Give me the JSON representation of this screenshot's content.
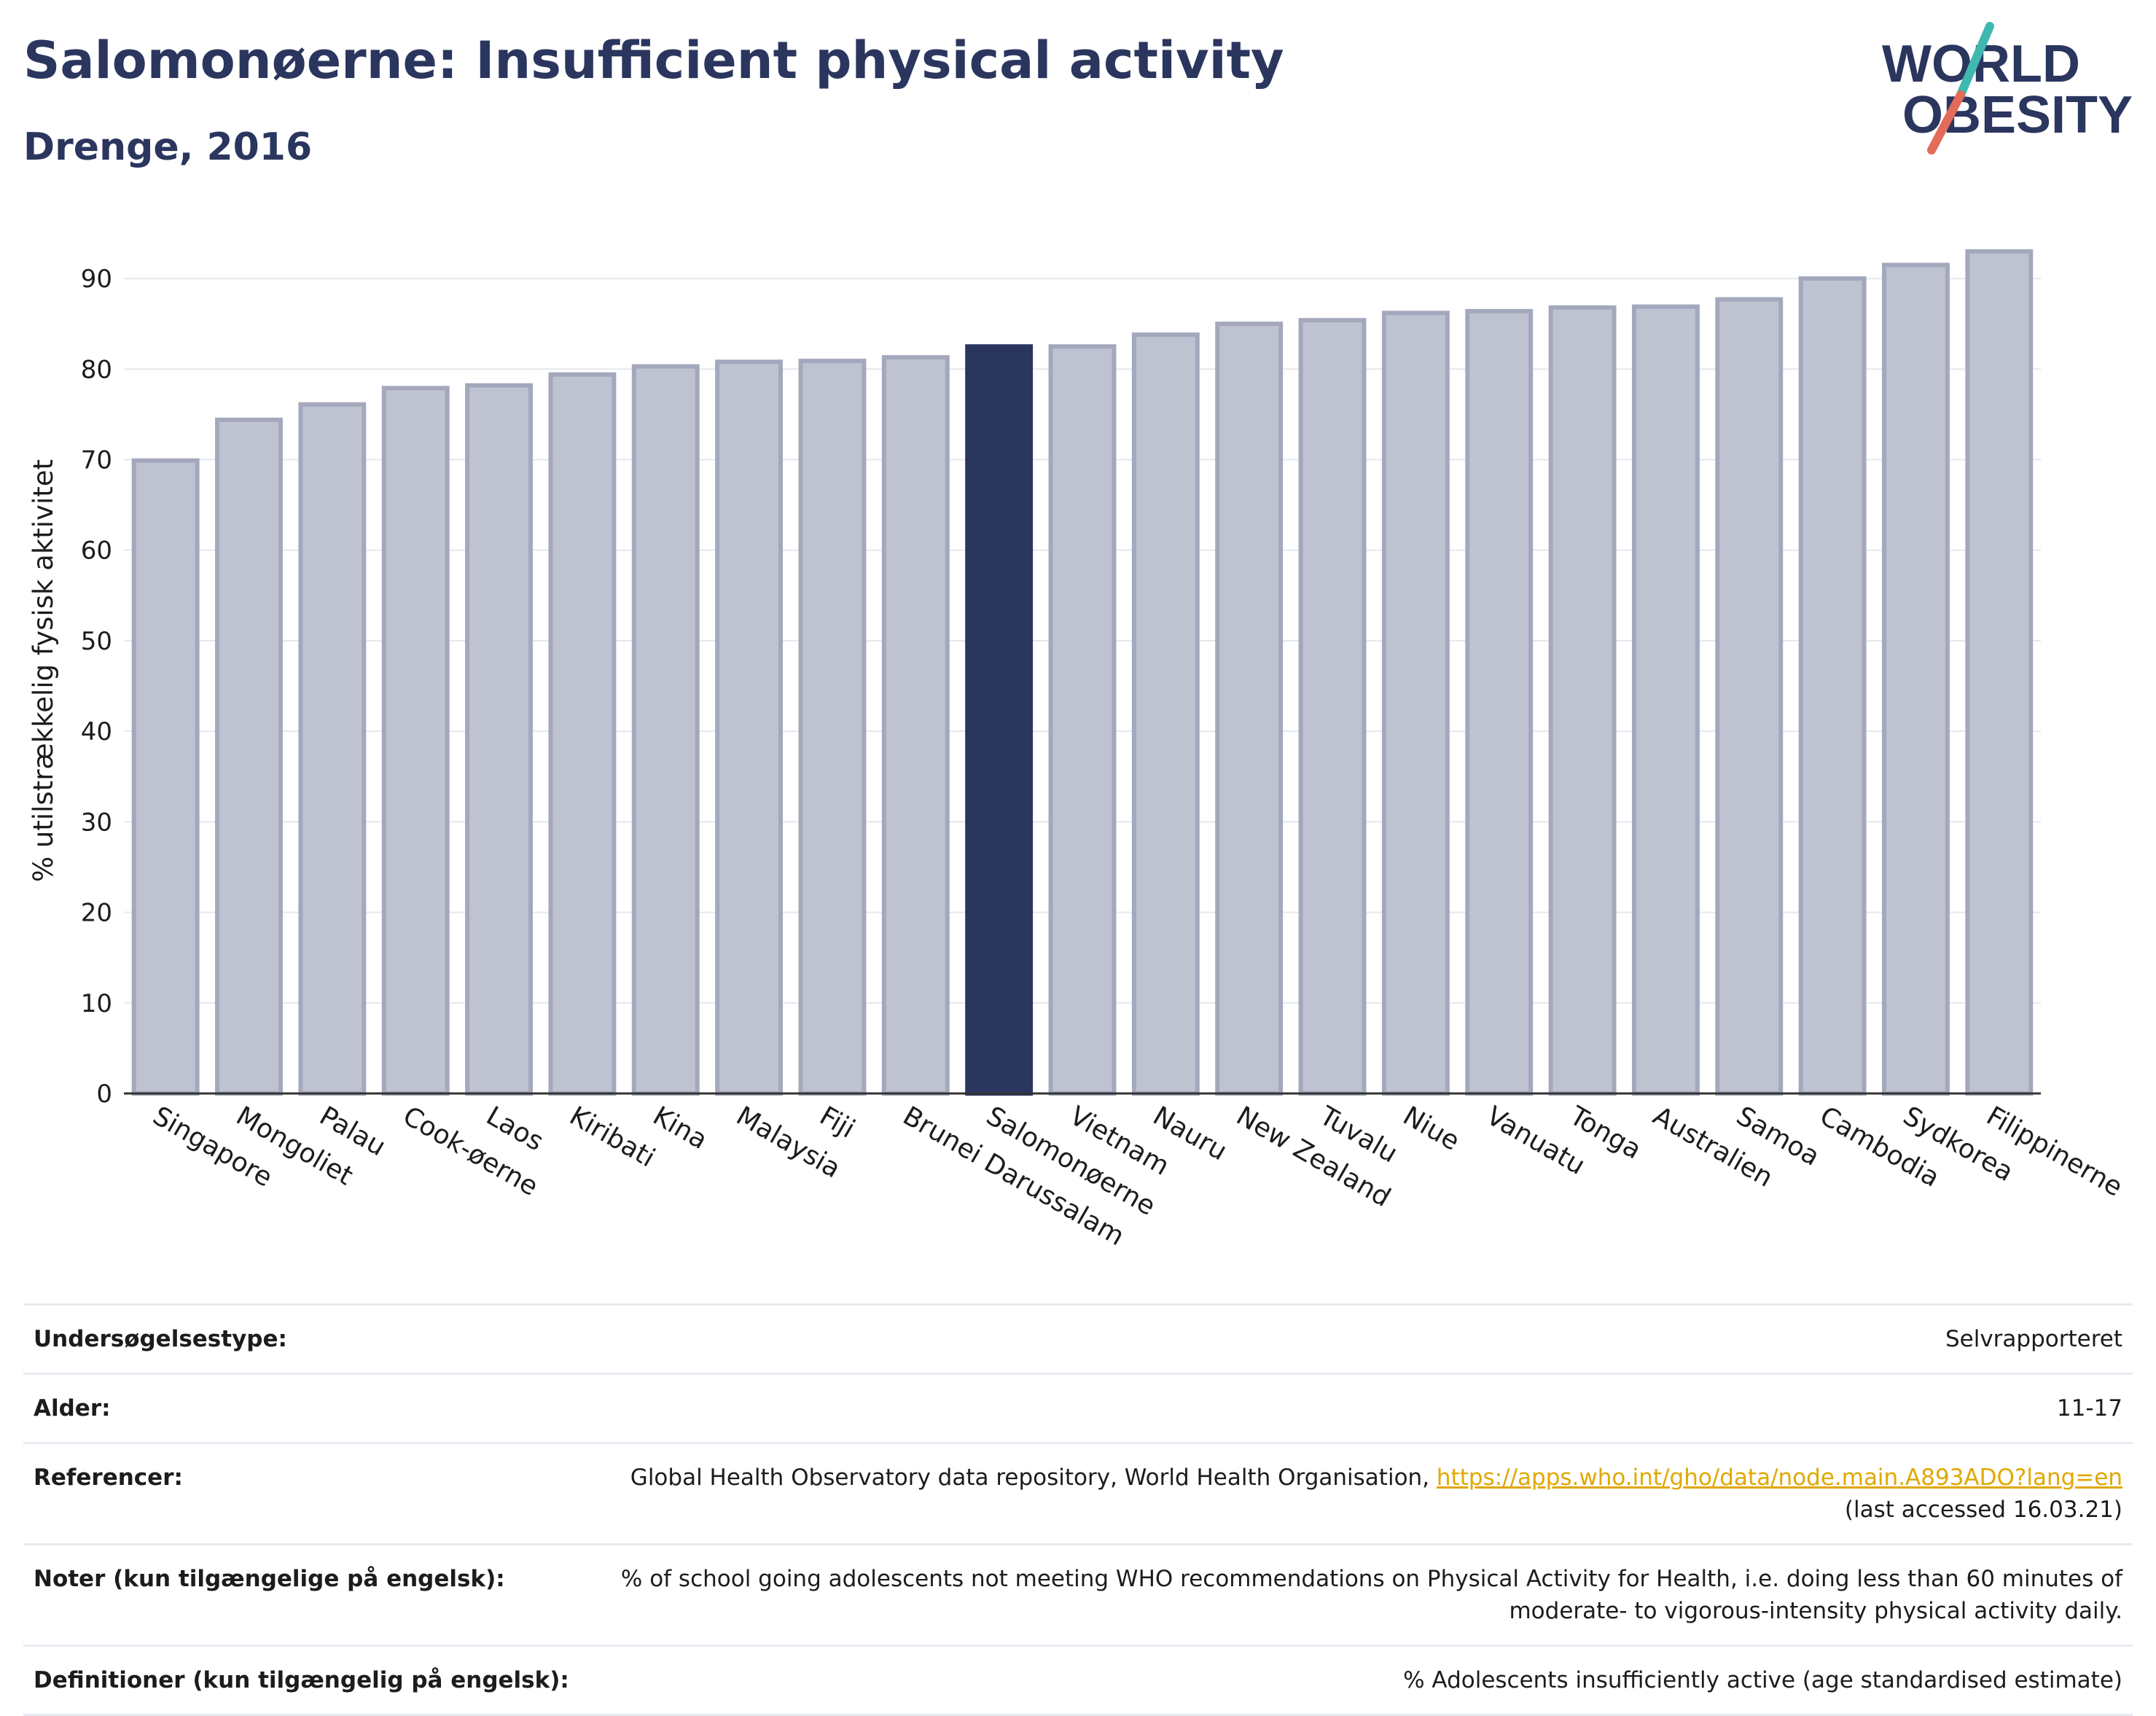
{
  "header": {
    "title": "Salomonøerne: Insufficient physical activity",
    "subtitle": "Drenge, 2016"
  },
  "logo": {
    "line1": "WORLD",
    "line2": "OBESITY",
    "colors": {
      "text": "#2b365f",
      "slash_teal": "#3fb8b0",
      "slash_coral": "#e36b5a"
    }
  },
  "chart_data": {
    "type": "bar",
    "ylabel": "% utilstrækkelig fysisk aktivitet",
    "ylim": [
      0,
      95
    ],
    "yticks": [
      0,
      10,
      20,
      30,
      40,
      50,
      60,
      70,
      80,
      90
    ],
    "grid": true,
    "highlight": "Salomonøerne",
    "colors": {
      "bar": "#bfc2d0",
      "bar_stroke": "#a4a8bd",
      "highlight": "#2b365f"
    },
    "categories": [
      "Singapore",
      "Mongoliet",
      "Palau",
      "Cook-øerne",
      "Laos",
      "Kiribati",
      "Kina",
      "Malaysia",
      "Fiji",
      "Brunei Darussalam",
      "Salomonøerne",
      "Vietnam",
      "Nauru",
      "New Zealand",
      "Tuvalu",
      "Niue",
      "Vanuatu",
      "Tonga",
      "Australien",
      "Samoa",
      "Cambodia",
      "Sydkorea",
      "Filippinerne"
    ],
    "values": [
      69.9,
      74.4,
      76.1,
      77.9,
      78.2,
      79.4,
      80.3,
      80.8,
      80.9,
      81.3,
      82.5,
      82.5,
      83.8,
      85.0,
      85.4,
      86.2,
      86.4,
      86.8,
      86.9,
      87.7,
      90.0,
      91.5,
      93.0
    ]
  },
  "info": [
    {
      "label": "Undersøgelsestype:",
      "value": "Selvrapporteret"
    },
    {
      "label": "Alder:",
      "value": "11-17"
    },
    {
      "label": "Referencer:",
      "value_prefix": "Global Health Observatory data repository, World Health Organisation, ",
      "link": "https://apps.who.int/gho/data/node.main.A893ADO?lang=en",
      "value_suffix": "(last accessed 16.03.21)"
    },
    {
      "label": "Noter (kun tilgængelige på engelsk):",
      "value": "% of school going adolescents not meeting WHO recommendations on Physical Activity for Health, i.e. doing less than 60 minutes of moderate- to vigorous-intensity physical activity daily."
    },
    {
      "label": "Definitioner (kun tilgængelig på engelsk):",
      "value": "% Adolescents insufficiently active (age standardised estimate)"
    }
  ]
}
